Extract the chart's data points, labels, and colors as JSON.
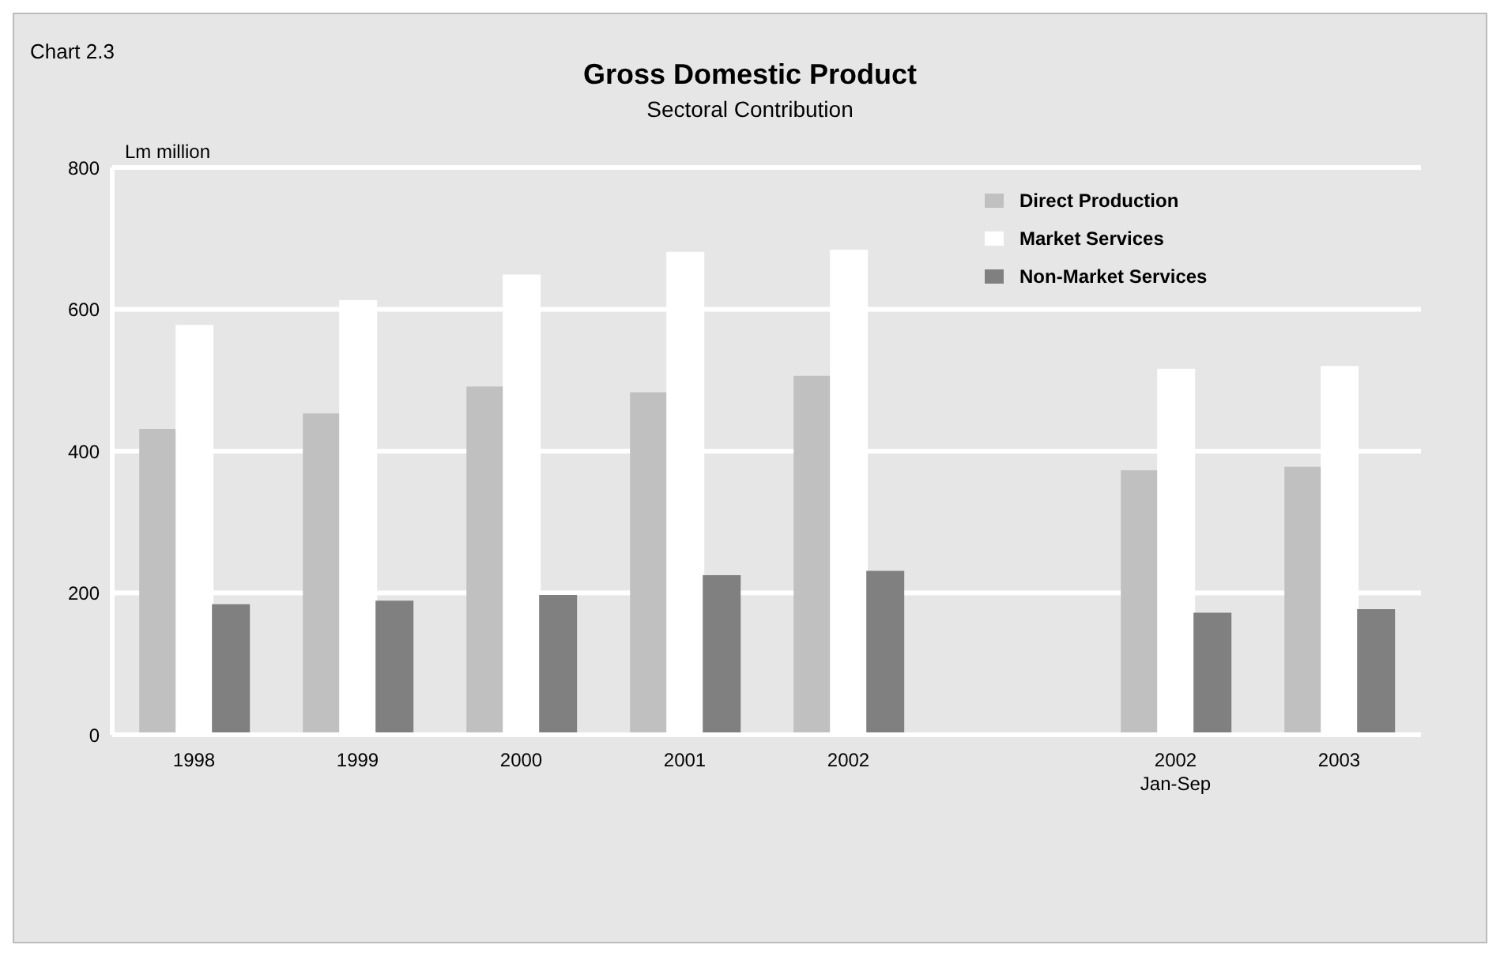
{
  "chart_data": {
    "type": "bar",
    "title": "Gross Domestic Product",
    "subtitle": "Sectoral Contribution",
    "ylabel": "Lm million",
    "annotations": [
      "Chart 2.3"
    ],
    "categories": [
      "1998",
      "1999",
      "2000",
      "2001",
      "2002",
      null,
      "2002 Jan-Sep",
      "2003"
    ],
    "series": [
      {
        "name": "Direct Production",
        "color": "#c0c0c0",
        "values": [
          430,
          452,
          490,
          482,
          505,
          null,
          372,
          377
        ]
      },
      {
        "name": "Market Services",
        "color": "#ffffff",
        "values": [
          577,
          612,
          648,
          680,
          683,
          null,
          515,
          519
        ]
      },
      {
        "name": "Non-Market Services",
        "color": "#808080",
        "values": [
          183,
          188,
          196,
          224,
          230,
          null,
          171,
          176
        ]
      }
    ],
    "ylim": [
      0,
      800
    ],
    "yticks": [
      0,
      200,
      400,
      600,
      800
    ],
    "grid": "y",
    "legend": "top right"
  }
}
